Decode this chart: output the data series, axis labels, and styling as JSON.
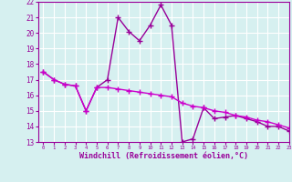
{
  "xlabel": "Windchill (Refroidissement éolien,°C)",
  "x": [
    0,
    1,
    2,
    3,
    4,
    5,
    6,
    7,
    8,
    9,
    10,
    11,
    12,
    13,
    14,
    15,
    16,
    17,
    18,
    19,
    20,
    21,
    22,
    23
  ],
  "y_line1": [
    17.5,
    17.0,
    16.7,
    16.6,
    15.0,
    16.5,
    17.0,
    21.0,
    20.1,
    19.5,
    20.5,
    21.8,
    20.5,
    13.0,
    13.2,
    15.2,
    14.5,
    14.6,
    14.7,
    14.5,
    14.3,
    14.0,
    14.0,
    13.7
  ],
  "y_line2": [
    17.5,
    17.0,
    16.7,
    16.6,
    15.0,
    16.5,
    16.5,
    16.4,
    16.3,
    16.2,
    16.1,
    16.0,
    15.9,
    15.5,
    15.3,
    15.2,
    15.0,
    14.9,
    14.7,
    14.6,
    14.4,
    14.3,
    14.1,
    13.9
  ],
  "color1": "#990099",
  "color2": "#cc00cc",
  "bg_color": "#d6f0f0",
  "grid_color": "#ffffff",
  "ylim": [
    13,
    22
  ],
  "xlim": [
    -0.5,
    23
  ],
  "yticks": [
    13,
    14,
    15,
    16,
    17,
    18,
    19,
    20,
    21,
    22
  ],
  "xticks": [
    0,
    1,
    2,
    3,
    4,
    5,
    6,
    7,
    8,
    9,
    10,
    11,
    12,
    13,
    14,
    15,
    16,
    17,
    18,
    19,
    20,
    21,
    22,
    23
  ],
  "marker": "+",
  "markersize": 4,
  "linewidth": 1.0
}
